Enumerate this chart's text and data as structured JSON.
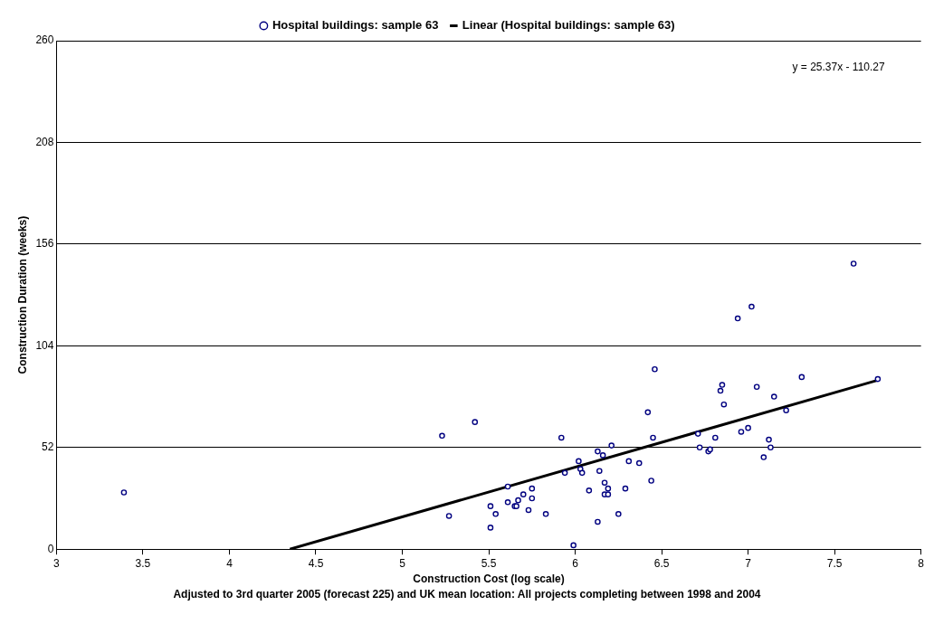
{
  "chart_data": {
    "type": "scatter",
    "xlabel": "Construction Cost (log scale)",
    "ylabel": "Construction Duration (weeks)",
    "annotations": [
      "y = 25.37x - 110.27",
      "Adjusted to 3rd quarter 2005 (forecast 225) and UK mean location: All projects completing between 1998 and 2004"
    ],
    "xlim": [
      3,
      8
    ],
    "xticks": [
      3,
      3.5,
      4,
      4.5,
      5,
      5.5,
      6,
      6.5,
      7,
      7.5,
      8
    ],
    "ylim": [
      0,
      260
    ],
    "yticks": [
      0,
      52,
      104,
      156,
      208,
      260
    ],
    "grid": "y",
    "legend": "top",
    "marker": "circle",
    "series": [
      {
        "name": "Hospital buildings: sample 63",
        "type": "scatter",
        "color": "#000080",
        "x": [
          3.39,
          5.23,
          5.42,
          5.27,
          5.51,
          5.54,
          5.51,
          5.61,
          5.61,
          5.65,
          5.66,
          5.67,
          5.7,
          5.73,
          5.75,
          5.75,
          5.83,
          5.92,
          5.94,
          5.99,
          6.02,
          6.03,
          6.04,
          6.08,
          6.13,
          6.14,
          6.13,
          6.16,
          6.17,
          6.17,
          6.19,
          6.19,
          6.21,
          6.25,
          6.29,
          6.31,
          6.37,
          6.42,
          6.44,
          6.45,
          6.46,
          6.71,
          6.72,
          6.77,
          6.78,
          6.81,
          6.84,
          6.85,
          6.86,
          6.94,
          6.96,
          7.0,
          7.02,
          7.05,
          7.09,
          7.12,
          7.13,
          7.15,
          7.22,
          7.31,
          7.61,
          7.75
        ],
        "values": [
          29,
          58,
          65,
          17,
          22,
          18,
          11,
          32,
          24,
          22,
          22,
          25,
          28,
          20,
          31,
          26,
          18,
          57,
          39,
          2,
          45,
          41,
          39,
          30,
          50,
          40,
          14,
          48,
          34,
          28,
          28,
          31,
          53,
          18,
          31,
          45,
          44,
          70,
          35,
          57,
          92,
          59,
          52,
          50,
          51,
          57,
          81,
          84,
          74,
          118,
          60,
          62,
          124,
          83,
          47,
          56,
          52,
          78,
          71,
          88,
          146,
          87
        ]
      },
      {
        "name": "Linear (Hospital buildings: sample 63)",
        "type": "line",
        "color": "#000000",
        "marker": "none",
        "line_style": "solid",
        "x": [
          4.35,
          7.75
        ],
        "values": [
          0,
          86.4
        ]
      }
    ]
  }
}
